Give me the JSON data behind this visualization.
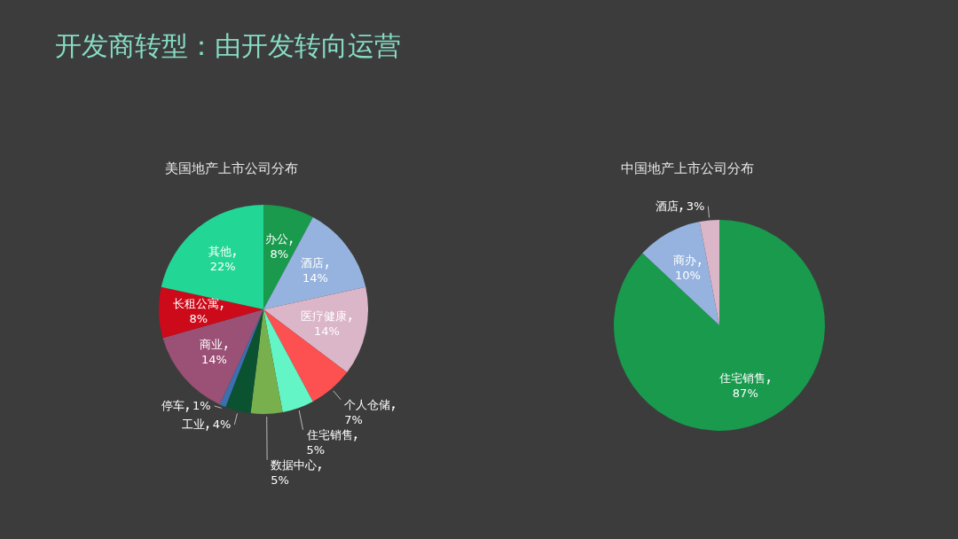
{
  "chart_data": [
    {
      "type": "pie",
      "title": "美国地产上市公司分布",
      "annotations": [
        "开发商转型：由开发转向运营"
      ],
      "categories": [
        "办公",
        "酒店",
        "医疗健康",
        "个人仓储",
        "住宅销售",
        "数据中心",
        "工业",
        "停车",
        "商业",
        "长租公寓",
        "其他"
      ],
      "values": [
        8,
        14,
        14,
        7,
        5,
        5,
        4,
        1,
        14,
        8,
        22
      ],
      "value_labels": [
        "8%",
        "14%",
        "14%",
        "7%",
        "5%",
        "5%",
        "4%",
        "1%",
        "14%",
        "8%",
        "22%"
      ],
      "colors": [
        "#199a4d",
        "#95b3de",
        "#dbb5c8",
        "#fd5050",
        "#64f5c7",
        "#78b04d",
        "#0a5230",
        "#3a6fb0",
        "#9b5076",
        "#cc0a1a",
        "#22d695"
      ]
    },
    {
      "type": "pie",
      "title": "中国地产上市公司分布",
      "categories": [
        "住宅销售",
        "商办",
        "酒店"
      ],
      "values": [
        87,
        10,
        3
      ],
      "value_labels": [
        "87%",
        "10%",
        "3%"
      ],
      "colors": [
        "#199a4d",
        "#95b3de",
        "#dbb5c8"
      ]
    }
  ]
}
